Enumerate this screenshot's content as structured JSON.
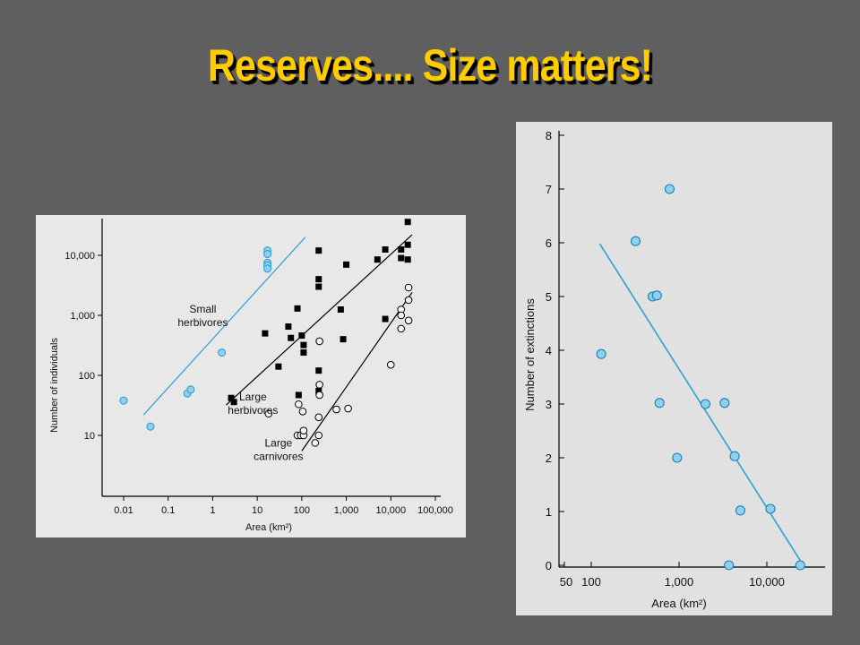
{
  "title": "Reserves.... Size matters!",
  "colors": {
    "title": "#ffcc00",
    "background": "#5f5f5f",
    "accent": "#2f9fd6",
    "marker_fill": "#8fd0ee"
  },
  "chart_data": [
    {
      "type": "scatter",
      "title": "",
      "xlabel": "Area (km²)",
      "ylabel": "Number of individuals",
      "x_scale": "log",
      "y_scale": "log",
      "xlim": [
        0.01,
        100000
      ],
      "ylim": [
        3,
        40000
      ],
      "x_ticks": [
        0.01,
        0.1,
        1,
        10,
        100,
        1000,
        10000,
        100000
      ],
      "x_tick_labels": [
        "0.01",
        "0.1",
        "1",
        "10",
        "100",
        "1,000",
        "10,000",
        "100,000"
      ],
      "y_ticks": [
        10,
        100,
        1000,
        10000
      ],
      "y_tick_labels": [
        "10",
        "100",
        "1,000",
        "10,000"
      ],
      "grid": false,
      "series": [
        {
          "name": "Small herbivores",
          "marker": "circle-blue",
          "points": [
            [
              0.01,
              38
            ],
            [
              0.04,
              14
            ],
            [
              0.27,
              50
            ],
            [
              0.32,
              58
            ],
            [
              1.6,
              240
            ],
            [
              17,
              12000
            ],
            [
              17,
              10500
            ],
            [
              17,
              7500
            ],
            [
              17,
              6800
            ],
            [
              17,
              6000
            ]
          ],
          "trend": [
            [
              0.028,
              22
            ],
            [
              120,
              20000
            ]
          ]
        },
        {
          "name": "Large herbivores",
          "marker": "square-black",
          "points": [
            [
              2.6,
              42
            ],
            [
              3,
              36
            ],
            [
              15,
              500
            ],
            [
              30,
              140
            ],
            [
              50,
              650
            ],
            [
              57,
              420
            ],
            [
              80,
              1300
            ],
            [
              85,
              47
            ],
            [
              100,
              460
            ],
            [
              110,
              320
            ],
            [
              110,
              240
            ],
            [
              240,
              12000
            ],
            [
              240,
              4000
            ],
            [
              240,
              3000
            ],
            [
              240,
              120
            ],
            [
              240,
              55
            ],
            [
              750,
              1250
            ],
            [
              850,
              400
            ],
            [
              1000,
              7000
            ],
            [
              5000,
              8500
            ],
            [
              7500,
              12500
            ],
            [
              7500,
              870
            ],
            [
              17000,
              12500
            ],
            [
              17000,
              9000
            ],
            [
              24000,
              15000
            ],
            [
              24000,
              36000
            ],
            [
              24000,
              8500
            ]
          ],
          "trend": [
            [
              2.0,
              32
            ],
            [
              30000,
              22000
            ]
          ]
        },
        {
          "name": "Large carnivores",
          "marker": "circle-open",
          "points": [
            [
              18,
              23
            ],
            [
              80,
              10
            ],
            [
              85,
              33
            ],
            [
              95,
              10
            ],
            [
              105,
              25
            ],
            [
              110,
              10
            ],
            [
              110,
              12
            ],
            [
              200,
              7.5
            ],
            [
              240,
              10
            ],
            [
              240,
              20
            ],
            [
              250,
              370
            ],
            [
              250,
              70
            ],
            [
              250,
              47
            ],
            [
              600,
              27
            ],
            [
              1100,
              28
            ],
            [
              10000,
              150
            ],
            [
              17000,
              1250
            ],
            [
              17000,
              1000
            ],
            [
              17000,
              600
            ],
            [
              25000,
              2900
            ],
            [
              25000,
              1800
            ],
            [
              25000,
              820
            ]
          ],
          "trend": [
            [
              100,
              5.5
            ],
            [
              30000,
              2400
            ]
          ]
        }
      ],
      "annotations": [
        {
          "text_lines": [
            "Small",
            "herbivores"
          ],
          "data_pos": [
            0.6,
            1100
          ]
        },
        {
          "text_lines": [
            "Large",
            "herbivores"
          ],
          "data_pos": [
            8,
            38
          ]
        },
        {
          "text_lines": [
            "Large",
            "carnivores"
          ],
          "data_pos": [
            30,
            6.5
          ]
        }
      ]
    },
    {
      "type": "scatter",
      "title": "",
      "xlabel": "Area (km²)",
      "ylabel": "Number of extinctions",
      "x_scale": "log",
      "y_scale": "linear",
      "xlim": [
        50,
        40000
      ],
      "ylim": [
        0,
        8
      ],
      "x_ticks": [
        50,
        100,
        1000,
        10000
      ],
      "x_tick_labels": [
        "50",
        "100",
        "1,000",
        "10,000"
      ],
      "y_ticks": [
        0,
        1,
        2,
        3,
        4,
        5,
        6,
        7,
        8
      ],
      "y_tick_labels": [
        "0",
        "1",
        "2",
        "3",
        "4",
        "5",
        "6",
        "7",
        "8"
      ],
      "grid": false,
      "series": [
        {
          "name": "",
          "marker": "circle-blue",
          "points": [
            [
              130,
              3.93
            ],
            [
              320,
              6.03
            ],
            [
              500,
              5.0
            ],
            [
              560,
              5.02
            ],
            [
              600,
              3.02
            ],
            [
              780,
              7.0
            ],
            [
              950,
              2.0
            ],
            [
              2000,
              3.0
            ],
            [
              3300,
              3.02
            ],
            [
              3700,
              0.0
            ],
            [
              4300,
              2.03
            ],
            [
              5000,
              1.02
            ],
            [
              11000,
              1.05
            ],
            [
              24000,
              0.0
            ]
          ],
          "trend": [
            [
              125,
              5.98
            ],
            [
              26000,
              0.0
            ]
          ]
        }
      ]
    }
  ]
}
